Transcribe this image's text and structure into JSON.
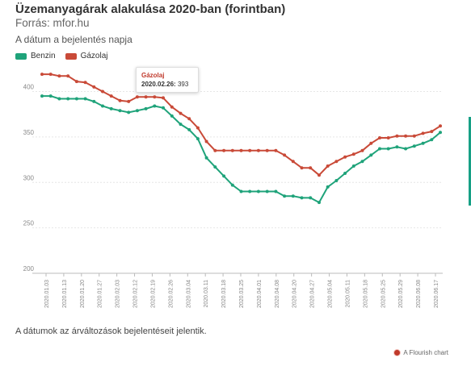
{
  "header": {
    "title": "Üzemanyagárak alakulása 2020-ban (forintban)",
    "subtitle": "Forrás: mfor.hu",
    "description": "A dátum a bejelentés napja"
  },
  "legend": [
    {
      "name": "Benzin",
      "color": "#1fa37a"
    },
    {
      "name": "Gázolaj",
      "color": "#c94a38"
    }
  ],
  "tooltip": {
    "series": "Gázolaj",
    "date": "2020.02.26:",
    "value": "393"
  },
  "footnote": "A dátumok az árváltozások bejelentéseit jelentik.",
  "credit": "A Flourish chart",
  "chart_data": {
    "type": "line",
    "title": "Üzemanyagárak alakulása 2020-ban (forintban)",
    "ylim": [
      200,
      400
    ],
    "yticks": [
      200,
      250,
      300,
      350,
      400
    ],
    "grid": true,
    "legend_position": "top-left",
    "x_tick_labels": [
      "2020.01.03",
      "2020.01.13",
      "2020.01.20",
      "2020.01.27",
      "2020.02.03",
      "2020.02.12",
      "2020.02.19",
      "2020.02.26",
      "2020.03.04",
      "2020.03.11",
      "2020.03.18",
      "2020.03.25",
      "2020.04.01",
      "2020.04.08",
      "2020.04.20",
      "2020.04.27",
      "2020.05.04",
      "2020.05.11",
      "2020.05.18",
      "2020.05.25",
      "2020.05.29",
      "2020.06.08",
      "2020.06.17"
    ],
    "series": [
      {
        "name": "Benzin",
        "color": "#1fa37a",
        "values": [
          395,
          395,
          392,
          392,
          392,
          392,
          389,
          384,
          381,
          379,
          377,
          379,
          381,
          384,
          382,
          373,
          364,
          358,
          348,
          327,
          317,
          307,
          297,
          290,
          290,
          290,
          290,
          290,
          285,
          285,
          283,
          283,
          278,
          295,
          302,
          310,
          318,
          323,
          330,
          337,
          337,
          339,
          337,
          340,
          343,
          347,
          355
        ]
      },
      {
        "name": "Gázolaj",
        "color": "#c94a38",
        "values": [
          419,
          419,
          417,
          417,
          411,
          410,
          405,
          400,
          395,
          390,
          389,
          394,
          394,
          394,
          393,
          383,
          376,
          370,
          360,
          345,
          335,
          335,
          335,
          335,
          335,
          335,
          335,
          335,
          330,
          323,
          316,
          316,
          308,
          318,
          323,
          328,
          331,
          335,
          343,
          349,
          349,
          351,
          351,
          351,
          354,
          356,
          362
        ]
      }
    ]
  }
}
